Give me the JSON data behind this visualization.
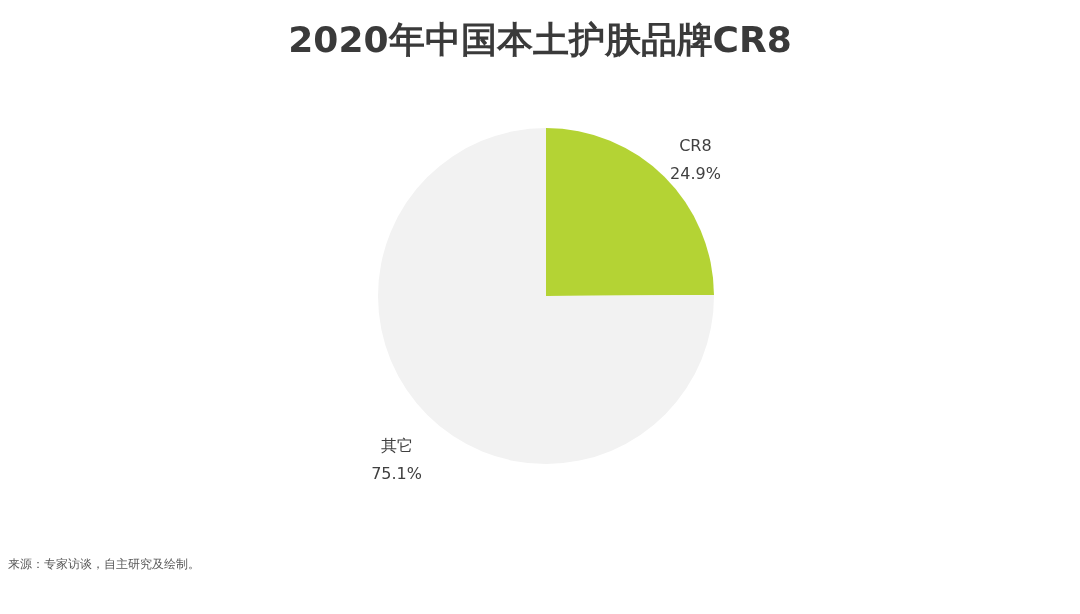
{
  "chart_data": {
    "type": "pie",
    "title": "2020年中国本土护肤品牌CR8",
    "categories": [
      "CR8",
      "其它"
    ],
    "values": [
      24.9,
      75.1
    ],
    "value_labels": [
      "24.9%",
      "75.1%"
    ],
    "colors": [
      "#b4d334",
      "#f2f2f2"
    ],
    "annotations": [
      "来源：专家访谈，自主研究及绘制。"
    ]
  }
}
